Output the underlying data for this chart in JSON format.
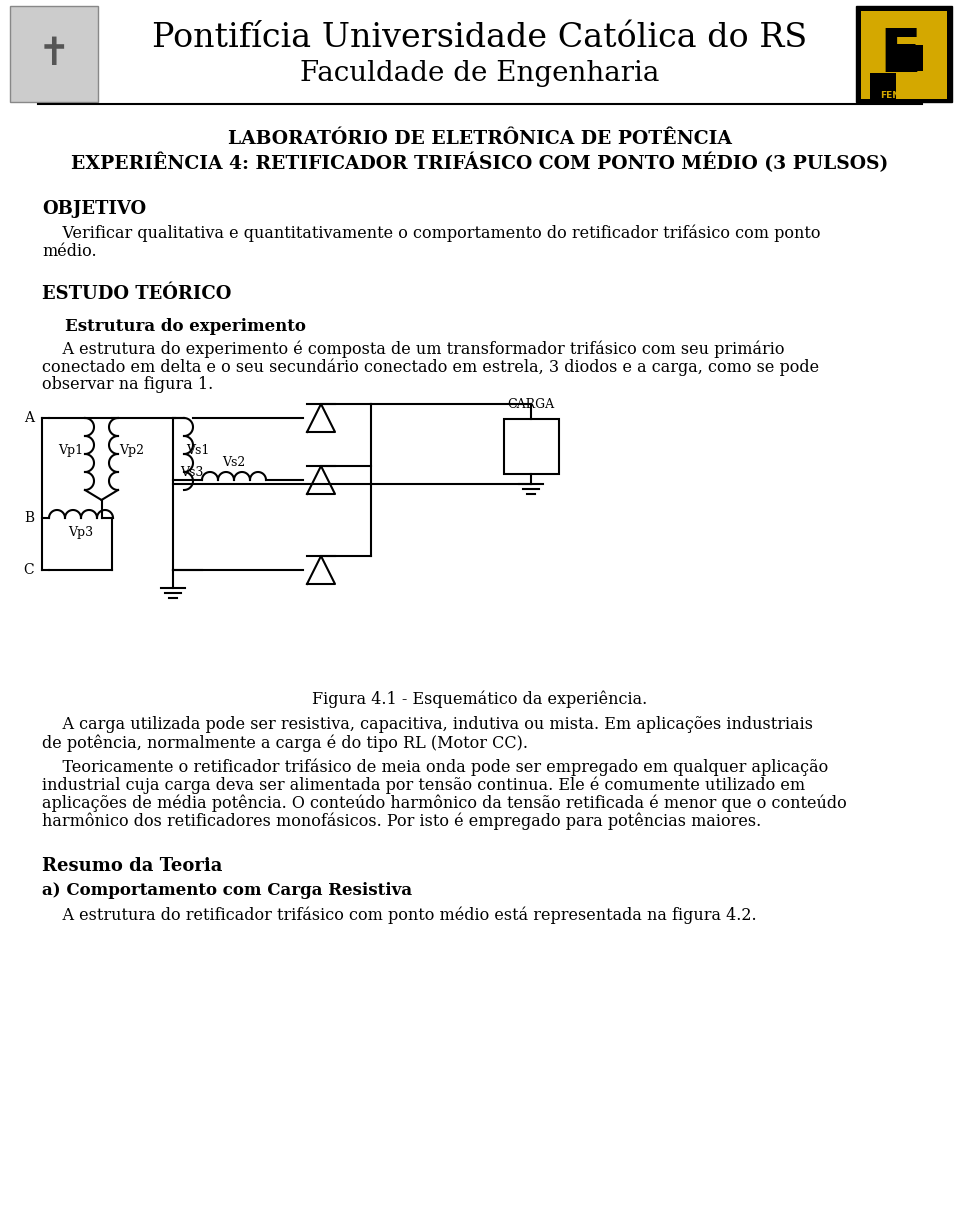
{
  "bg_color": "#ffffff",
  "title_line1": "Pontifícia Universidade Católica do RS",
  "title_line2": "Faculdade de Engenharia",
  "section1_line1": "LABORATÓRIO DE ELETRÔNICA DE POTÊNCIA",
  "section1_line2": "EXPERIÊNCIA 4: RETIFICADOR TRIFÁSICO COM PONTO MÉDIO (3 PULSOS)",
  "objetivo_title": "OBJETIVO",
  "objetivo_body": "    Verificar qualitativa e quantitativamente o comportamento do retificador trifásico com ponto\nmédio.",
  "estudo_title": "ESTUDO TEÓRICO",
  "estrutura_subtitle": "Estrutura do experimento",
  "estrutura_body1": "    A estrutura do experimento é composta de um transformador trifásico com seu primário",
  "estrutura_body2": "conectado em delta e o seu secundário conectado em estrela, 3 diodos e a carga, como se pode",
  "estrutura_body3": "observar na figura 1.",
  "figura_caption": "Figura 4.1 - Esquemático da experiência.",
  "carga_body1": "    A carga utilizada pode ser resistiva, capacitiva, indutiva ou mista. Em aplicações industriais",
  "carga_body2": "de potência, normalmente a carga é do tipo RL (Motor CC).",
  "teorico_body1": "    Teoricamente o retificador trifásico de meia onda pode ser empregado em qualquer aplicação",
  "teorico_body2": "industrial cuja carga deva ser alimentada por tensão continua. Ele é comumente utilizado em",
  "teorico_body3": "aplicações de média potência. O conteúdo harmônico da tensão retificada é menor que o conteúdo",
  "teorico_body4": "harmônico dos retificadores monofásicos. Por isto é empregado para potências maiores.",
  "resumo_title": "Resumo da Teoria",
  "comportamento_subtitle": "a) Comportamento com Carga Resistiva",
  "comportamento_body": "    A estrutura do retificador trifásico com ponto médio está representada na figura 4.2."
}
